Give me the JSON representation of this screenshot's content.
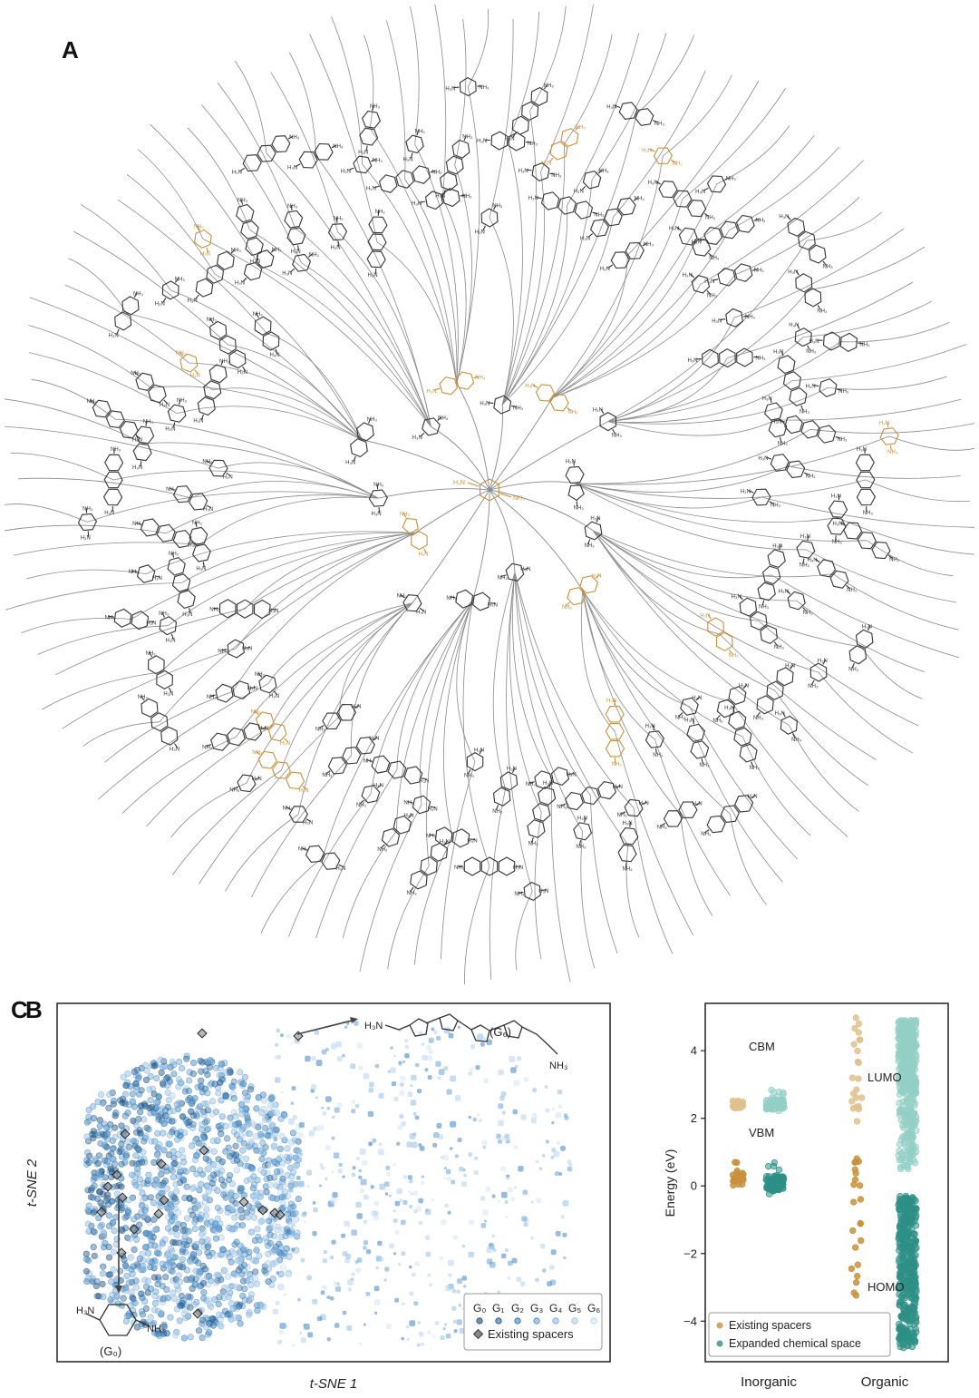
{
  "panels": {
    "a": {
      "letter": "A"
    },
    "b": {
      "letter": "B"
    },
    "c": {
      "letter": "C"
    }
  },
  "colors": {
    "existing": "#c8913c",
    "existing_light": "#dfc18e",
    "expanded_dark": "#2e8f86",
    "expanded_light": "#93cfc5",
    "tsne_dark": "#1f5d8f",
    "tsne_light": "#cfe2f3",
    "line": "#8a8a8a"
  },
  "tree": {
    "center_label_left": "H₃N",
    "center_label_right": "NH₃"
  },
  "tsne": {
    "xlabel": "t-SNE 1",
    "ylabel": "t-SNE 2",
    "legend": {
      "generations": [
        "G₀",
        "G₁",
        "G₂",
        "G₃",
        "G₄",
        "G₅",
        "G₆"
      ],
      "existing_label": "Existing spacers"
    },
    "annotation_g0": "(G₀)",
    "annotation_g6": "(G₆)",
    "g6_left": "H₃N",
    "g6_right": "NH₃",
    "g0_left": "H₃N",
    "g0_right": "NH₃"
  },
  "chart_data": {
    "type": "scatter",
    "title": "",
    "xlabel": "",
    "ylabel": "Energy (eV)",
    "categories": [
      "Inorganic",
      "Organic"
    ],
    "ylim": [
      -5.2,
      5.4
    ],
    "yticks": [
      -4,
      -2,
      0,
      2,
      4
    ],
    "series": [
      {
        "name": "Existing spacers",
        "category": "Inorganic",
        "band": "CBM",
        "ymin": 2.25,
        "ymax": 2.75
      },
      {
        "name": "Existing spacers",
        "category": "Inorganic",
        "band": "VBM",
        "ymin": -0.1,
        "ymax": 0.9
      },
      {
        "name": "Expanded chemical space",
        "category": "Inorganic",
        "band": "CBM",
        "ymin": 2.2,
        "ymax": 2.85
      },
      {
        "name": "Expanded chemical space",
        "category": "Inorganic",
        "band": "VBM",
        "ymin": -0.25,
        "ymax": 0.75
      },
      {
        "name": "Existing spacers",
        "category": "Organic",
        "band": "LUMO",
        "ymin": 1.6,
        "ymax": 5.0
      },
      {
        "name": "Existing spacers",
        "category": "Organic",
        "band": "HOMO",
        "ymin": -3.4,
        "ymax": 0.9
      },
      {
        "name": "Expanded chemical space",
        "category": "Organic",
        "band": "LUMO",
        "ymin": 0.5,
        "ymax": 4.9
      },
      {
        "name": "Expanded chemical space",
        "category": "Organic",
        "band": "HOMO",
        "ymin": -4.8,
        "ymax": 0.45
      }
    ],
    "annotations": [
      "CBM",
      "VBM",
      "LUMO",
      "HOMO"
    ],
    "legend": {
      "position": "bottom-left",
      "entries": [
        "Existing spacers",
        "Expanded chemical space"
      ]
    }
  }
}
